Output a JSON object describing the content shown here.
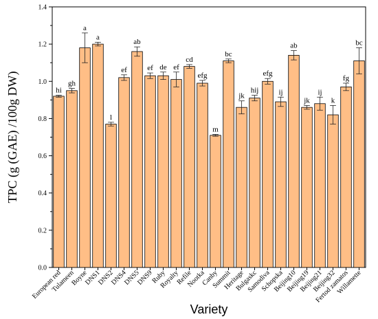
{
  "chart_data": {
    "type": "bar",
    "title": "",
    "xlabel": "Variety",
    "ylabel": "TPC (g (GAE) /100g DW)",
    "ylim": [
      0,
      1.4
    ],
    "yticks": [
      "0.0",
      "0.2",
      "0.4",
      "0.6",
      "0.8",
      "1.0",
      "1.2",
      "1.4"
    ],
    "bar_color": "#FFBE86",
    "bar_edge_color": "#000000",
    "grid": false,
    "categories": [
      "European red",
      "Tulameen",
      "Boyne",
      "DNS1",
      "DNS2",
      "DNS4",
      "DNS5",
      "DNS9",
      "Ruby",
      "Royalty",
      "Refile",
      "Nootka",
      "Canby",
      "Summit",
      "Heritage",
      "Bulgaskc",
      "Samodiva",
      "Schopska",
      "Beijing10",
      "Beijing19",
      "Beijing21",
      "Beijing32",
      "Fertod zamatos",
      "Willamette"
    ],
    "values": [
      0.92,
      0.95,
      1.18,
      1.2,
      0.77,
      1.02,
      1.16,
      1.03,
      1.03,
      1.01,
      1.08,
      0.99,
      0.71,
      1.11,
      0.86,
      0.91,
      1.0,
      0.89,
      1.14,
      0.86,
      0.88,
      0.82,
      0.97,
      1.11
    ],
    "errors": [
      0.005,
      0.012,
      0.08,
      0.01,
      0.01,
      0.015,
      0.025,
      0.015,
      0.02,
      0.04,
      0.01,
      0.015,
      0.005,
      0.01,
      0.035,
      0.015,
      0.015,
      0.025,
      0.025,
      0.01,
      0.035,
      0.05,
      0.02,
      0.07
    ],
    "significance": [
      "hi",
      "gh",
      "a",
      "a",
      "l",
      "ef",
      "ab",
      "ef",
      "de",
      "ef",
      "cd",
      "efg",
      "m",
      "bc",
      "jk",
      "hij",
      "efg",
      "ij",
      "ab",
      "jk",
      "ij",
      "k",
      "fg",
      "bc"
    ]
  }
}
